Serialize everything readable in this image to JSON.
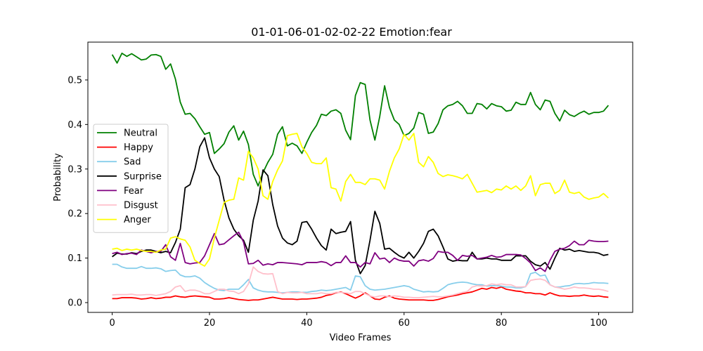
{
  "chart_data": {
    "type": "line",
    "title": "01-01-06-01-02-02-22 Emotion:fear",
    "xlabel": "Video Frames",
    "ylabel": "Probability",
    "xlim": [
      -5,
      107
    ],
    "ylim": [
      -0.022,
      0.585
    ],
    "xticks": [
      0,
      20,
      40,
      60,
      80,
      100
    ],
    "yticks": [
      0.0,
      0.1,
      0.2,
      0.3,
      0.4,
      0.5
    ],
    "xtick_labels": [
      "0",
      "20",
      "40",
      "60",
      "80",
      "100"
    ],
    "ytick_labels": [
      "0.0",
      "0.1",
      "0.2",
      "0.3",
      "0.4",
      "0.5"
    ],
    "grid": false,
    "legend_position": "center-left",
    "series": [
      {
        "name": "Neutral",
        "color": "#008000",
        "values": [
          0.557,
          0.538,
          0.56,
          0.553,
          0.559,
          0.552,
          0.545,
          0.547,
          0.556,
          0.557,
          0.553,
          0.524,
          0.536,
          0.502,
          0.45,
          0.423,
          0.425,
          0.413,
          0.395,
          0.378,
          0.382,
          0.335,
          0.345,
          0.357,
          0.383,
          0.397,
          0.365,
          0.385,
          0.355,
          0.288,
          0.262,
          0.292,
          0.315,
          0.333,
          0.378,
          0.395,
          0.352,
          0.358,
          0.352,
          0.335,
          0.36,
          0.382,
          0.398,
          0.423,
          0.42,
          0.43,
          0.433,
          0.425,
          0.387,
          0.366,
          0.465,
          0.494,
          0.49,
          0.41,
          0.365,
          0.418,
          0.487,
          0.438,
          0.41,
          0.4,
          0.375,
          0.38,
          0.392,
          0.427,
          0.423,
          0.38,
          0.383,
          0.402,
          0.433,
          0.442,
          0.445,
          0.452,
          0.442,
          0.425,
          0.425,
          0.447,
          0.445,
          0.435,
          0.447,
          0.442,
          0.44,
          0.43,
          0.432,
          0.45,
          0.445,
          0.445,
          0.472,
          0.445,
          0.433,
          0.455,
          0.452,
          0.425,
          0.408,
          0.432,
          0.422,
          0.418,
          0.425,
          0.43,
          0.423,
          0.427,
          0.427,
          0.43,
          0.443
        ]
      },
      {
        "name": "Happy",
        "color": "#ff0000",
        "values": [
          0.009,
          0.009,
          0.011,
          0.011,
          0.011,
          0.01,
          0.008,
          0.009,
          0.011,
          0.009,
          0.01,
          0.012,
          0.012,
          0.015,
          0.013,
          0.012,
          0.014,
          0.015,
          0.014,
          0.013,
          0.012,
          0.008,
          0.008,
          0.009,
          0.011,
          0.009,
          0.007,
          0.006,
          0.005,
          0.006,
          0.006,
          0.008,
          0.01,
          0.012,
          0.01,
          0.008,
          0.008,
          0.008,
          0.007,
          0.008,
          0.008,
          0.009,
          0.01,
          0.012,
          0.016,
          0.018,
          0.022,
          0.024,
          0.02,
          0.015,
          0.01,
          0.015,
          0.022,
          0.015,
          0.008,
          0.007,
          0.012,
          0.015,
          0.01,
          0.008,
          0.007,
          0.006,
          0.006,
          0.006,
          0.006,
          0.005,
          0.005,
          0.007,
          0.01,
          0.013,
          0.015,
          0.017,
          0.02,
          0.022,
          0.024,
          0.028,
          0.032,
          0.03,
          0.034,
          0.032,
          0.035,
          0.03,
          0.028,
          0.026,
          0.025,
          0.022,
          0.022,
          0.02,
          0.02,
          0.017,
          0.022,
          0.018,
          0.015,
          0.015,
          0.014,
          0.015,
          0.015,
          0.017,
          0.015,
          0.014,
          0.015,
          0.013,
          0.012
        ]
      },
      {
        "name": "Sad",
        "color": "#87ceeb",
        "values": [
          0.086,
          0.086,
          0.08,
          0.077,
          0.077,
          0.077,
          0.081,
          0.077,
          0.077,
          0.078,
          0.076,
          0.07,
          0.072,
          0.073,
          0.062,
          0.058,
          0.058,
          0.06,
          0.055,
          0.045,
          0.038,
          0.032,
          0.028,
          0.027,
          0.03,
          0.03,
          0.03,
          0.04,
          0.052,
          0.033,
          0.028,
          0.025,
          0.024,
          0.024,
          0.023,
          0.022,
          0.023,
          0.024,
          0.024,
          0.023,
          0.023,
          0.025,
          0.026,
          0.028,
          0.027,
          0.028,
          0.03,
          0.032,
          0.034,
          0.028,
          0.06,
          0.058,
          0.038,
          0.03,
          0.028,
          0.029,
          0.03,
          0.032,
          0.034,
          0.036,
          0.038,
          0.036,
          0.03,
          0.027,
          0.024,
          0.025,
          0.024,
          0.025,
          0.032,
          0.04,
          0.043,
          0.045,
          0.046,
          0.045,
          0.042,
          0.04,
          0.04,
          0.037,
          0.038,
          0.038,
          0.037,
          0.035,
          0.035,
          0.033,
          0.033,
          0.036,
          0.065,
          0.068,
          0.06,
          0.062,
          0.04,
          0.035,
          0.035,
          0.037,
          0.038,
          0.042,
          0.043,
          0.042,
          0.043,
          0.045,
          0.044,
          0.044,
          0.043
        ]
      },
      {
        "name": "Surprise",
        "color": "#000000",
        "values": [
          0.103,
          0.111,
          0.109,
          0.109,
          0.112,
          0.11,
          0.115,
          0.118,
          0.118,
          0.115,
          0.112,
          0.115,
          0.112,
          0.135,
          0.165,
          0.258,
          0.265,
          0.3,
          0.35,
          0.37,
          0.325,
          0.3,
          0.283,
          0.23,
          0.19,
          0.165,
          0.15,
          0.14,
          0.113,
          0.185,
          0.228,
          0.298,
          0.285,
          0.22,
          0.172,
          0.145,
          0.134,
          0.13,
          0.138,
          0.18,
          0.182,
          0.165,
          0.145,
          0.128,
          0.118,
          0.165,
          0.155,
          0.158,
          0.16,
          0.182,
          0.095,
          0.065,
          0.083,
          0.14,
          0.205,
          0.178,
          0.12,
          0.122,
          0.113,
          0.105,
          0.1,
          0.113,
          0.1,
          0.115,
          0.133,
          0.16,
          0.165,
          0.15,
          0.125,
          0.098,
          0.093,
          0.095,
          0.094,
          0.094,
          0.113,
          0.098,
          0.098,
          0.1,
          0.098,
          0.098,
          0.095,
          0.095,
          0.095,
          0.105,
          0.105,
          0.105,
          0.093,
          0.085,
          0.082,
          0.09,
          0.075,
          0.1,
          0.122,
          0.118,
          0.12,
          0.115,
          0.117,
          0.115,
          0.113,
          0.113,
          0.111,
          0.106,
          0.108
        ]
      },
      {
        "name": "Fear",
        "color": "#800080",
        "values": [
          0.11,
          0.113,
          0.108,
          0.11,
          0.111,
          0.108,
          0.118,
          0.115,
          0.112,
          0.115,
          0.115,
          0.13,
          0.103,
          0.095,
          0.133,
          0.09,
          0.087,
          0.089,
          0.09,
          0.105,
          0.13,
          0.155,
          0.13,
          0.132,
          0.141,
          0.15,
          0.158,
          0.136,
          0.087,
          0.088,
          0.095,
          0.084,
          0.087,
          0.085,
          0.09,
          0.09,
          0.089,
          0.088,
          0.087,
          0.085,
          0.09,
          0.09,
          0.09,
          0.092,
          0.09,
          0.083,
          0.09,
          0.09,
          0.105,
          0.09,
          0.09,
          0.08,
          0.09,
          0.087,
          0.112,
          0.098,
          0.1,
          0.09,
          0.1,
          0.095,
          0.093,
          0.093,
          0.082,
          0.094,
          0.096,
          0.093,
          0.099,
          0.115,
          0.113,
          0.113,
          0.106,
          0.095,
          0.106,
          0.104,
          0.106,
          0.098,
          0.1,
          0.102,
          0.106,
          0.102,
          0.103,
          0.108,
          0.108,
          0.108,
          0.107,
          0.099,
          0.089,
          0.072,
          0.078,
          0.07,
          0.095,
          0.115,
          0.12,
          0.122,
          0.128,
          0.138,
          0.13,
          0.13,
          0.14,
          0.138,
          0.137,
          0.137,
          0.138
        ]
      },
      {
        "name": "Disgust",
        "color": "#ffc0cb",
        "values": [
          0.017,
          0.018,
          0.018,
          0.018,
          0.019,
          0.017,
          0.017,
          0.018,
          0.018,
          0.016,
          0.018,
          0.02,
          0.025,
          0.035,
          0.038,
          0.025,
          0.028,
          0.028,
          0.025,
          0.02,
          0.02,
          0.025,
          0.03,
          0.03,
          0.026,
          0.025,
          0.02,
          0.025,
          0.042,
          0.08,
          0.07,
          0.065,
          0.064,
          0.065,
          0.025,
          0.02,
          0.023,
          0.022,
          0.022,
          0.023,
          0.02,
          0.02,
          0.02,
          0.022,
          0.02,
          0.02,
          0.023,
          0.023,
          0.022,
          0.02,
          0.025,
          0.025,
          0.02,
          0.015,
          0.012,
          0.015,
          0.015,
          0.013,
          0.015,
          0.014,
          0.012,
          0.012,
          0.011,
          0.011,
          0.012,
          0.013,
          0.014,
          0.013,
          0.013,
          0.015,
          0.017,
          0.02,
          0.023,
          0.025,
          0.035,
          0.038,
          0.037,
          0.038,
          0.042,
          0.04,
          0.042,
          0.04,
          0.04,
          0.035,
          0.035,
          0.036,
          0.05,
          0.052,
          0.053,
          0.05,
          0.04,
          0.035,
          0.033,
          0.03,
          0.032,
          0.035,
          0.033,
          0.033,
          0.032,
          0.03,
          0.03,
          0.028,
          0.025
        ]
      },
      {
        "name": "Anger",
        "color": "#ffff00",
        "values": [
          0.12,
          0.122,
          0.117,
          0.12,
          0.118,
          0.12,
          0.117,
          0.115,
          0.115,
          0.113,
          0.118,
          0.12,
          0.145,
          0.148,
          0.143,
          0.14,
          0.125,
          0.095,
          0.088,
          0.082,
          0.098,
          0.145,
          0.185,
          0.225,
          0.23,
          0.232,
          0.28,
          0.275,
          0.34,
          0.325,
          0.3,
          0.24,
          0.232,
          0.272,
          0.298,
          0.318,
          0.375,
          0.378,
          0.38,
          0.35,
          0.335,
          0.315,
          0.312,
          0.312,
          0.325,
          0.258,
          0.255,
          0.228,
          0.272,
          0.288,
          0.27,
          0.27,
          0.265,
          0.278,
          0.278,
          0.275,
          0.255,
          0.295,
          0.325,
          0.345,
          0.378,
          0.365,
          0.38,
          0.315,
          0.305,
          0.328,
          0.315,
          0.29,
          0.283,
          0.287,
          0.285,
          0.282,
          0.278,
          0.288,
          0.268,
          0.248,
          0.25,
          0.252,
          0.247,
          0.255,
          0.253,
          0.262,
          0.255,
          0.262,
          0.252,
          0.262,
          0.285,
          0.24,
          0.265,
          0.268,
          0.268,
          0.245,
          0.252,
          0.275,
          0.248,
          0.245,
          0.248,
          0.237,
          0.232,
          0.235,
          0.237,
          0.245,
          0.235
        ]
      }
    ]
  }
}
